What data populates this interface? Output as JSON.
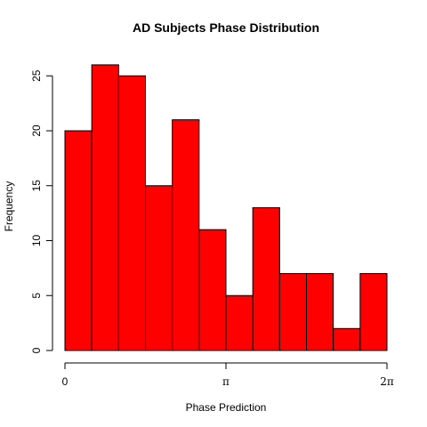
{
  "chart_data": {
    "type": "bar",
    "title": "AD Subjects Phase Distribution",
    "xlabel": "Phase Prediction",
    "ylabel": "Frequency",
    "x": [
      0.2618,
      0.7854,
      1.309,
      1.8326,
      2.3562,
      2.8798,
      3.4034,
      3.927,
      4.4506,
      4.9742,
      5.4978,
      6.0214
    ],
    "values": [
      20,
      26,
      25,
      15,
      21,
      11,
      5,
      13,
      7,
      7,
      2,
      7
    ],
    "bin_edges_label": [
      "0",
      "π/6",
      "π/3",
      "π/2",
      "2π/3",
      "5π/6",
      "π",
      "7π/6",
      "4π/3",
      "3π/2",
      "5π/3",
      "11π/6",
      "2π"
    ],
    "xlim": [
      0,
      6.2832
    ],
    "ylim": [
      0,
      26
    ],
    "x_ticks": [
      {
        "value": 0,
        "label": "0"
      },
      {
        "value": 3.1416,
        "label": "π"
      },
      {
        "value": 6.2832,
        "label": "2π"
      }
    ],
    "y_ticks": [
      {
        "value": 0,
        "label": "0"
      },
      {
        "value": 5,
        "label": "5"
      },
      {
        "value": 10,
        "label": "10"
      },
      {
        "value": 15,
        "label": "15"
      },
      {
        "value": 20,
        "label": "20"
      },
      {
        "value": 25,
        "label": "25"
      }
    ],
    "bar_color": "#ff0000",
    "bar_edge_color": "#000000",
    "grid": false,
    "legend": "none"
  }
}
